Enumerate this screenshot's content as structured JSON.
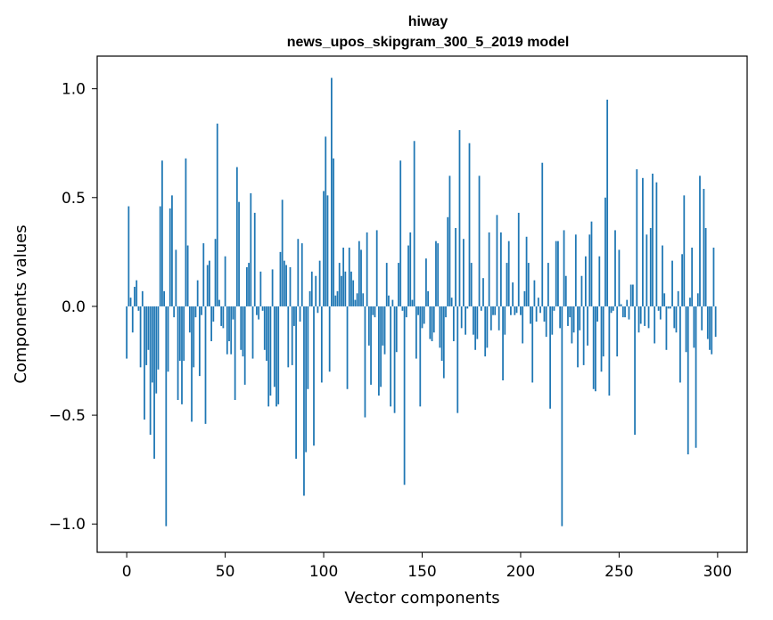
{
  "chart_data": {
    "type": "bar",
    "title_line1": "hiway",
    "title_line2": "news_upos_skipgram_300_5_2019 model",
    "xlabel": "Vector components",
    "ylabel": "Components values",
    "xlim": [
      -15,
      315
    ],
    "ylim": [
      -1.13,
      1.15
    ],
    "xticks": [
      0,
      50,
      100,
      150,
      200,
      250,
      300
    ],
    "xtick_labels": [
      "0",
      "50",
      "100",
      "150",
      "200",
      "250",
      "300"
    ],
    "yticks": [
      -1.0,
      -0.5,
      0.0,
      0.5,
      1.0
    ],
    "ytick_labels": [
      "−1.0",
      "−0.5",
      "0.0",
      "0.5",
      "1.0"
    ],
    "bar_color": "#1f77b4",
    "values": [
      -0.24,
      0.46,
      0.04,
      -0.12,
      0.09,
      0.12,
      -0.02,
      -0.28,
      0.07,
      -0.52,
      -0.27,
      -0.2,
      -0.59,
      -0.35,
      -0.7,
      -0.4,
      -0.29,
      0.46,
      0.67,
      0.07,
      -1.01,
      -0.3,
      0.45,
      0.51,
      -0.05,
      0.26,
      -0.43,
      -0.25,
      -0.45,
      -0.25,
      0.68,
      0.28,
      -0.12,
      -0.53,
      -0.28,
      -0.05,
      0.12,
      -0.32,
      -0.04,
      0.29,
      -0.54,
      0.19,
      0.21,
      -0.16,
      -0.07,
      0.31,
      0.84,
      0.03,
      -0.09,
      -0.1,
      0.23,
      -0.22,
      -0.16,
      -0.22,
      -0.06,
      -0.43,
      0.64,
      0.48,
      -0.2,
      -0.23,
      -0.36,
      0.18,
      0.2,
      0.52,
      -0.24,
      0.43,
      -0.04,
      -0.06,
      0.16,
      -0.02,
      -0.2,
      -0.25,
      -0.46,
      -0.41,
      0.17,
      -0.37,
      -0.46,
      -0.45,
      0.25,
      0.49,
      0.21,
      0.19,
      -0.28,
      0.18,
      -0.27,
      -0.09,
      -0.7,
      0.31,
      -0.07,
      0.29,
      -0.87,
      -0.67,
      -0.38,
      0.07,
      0.16,
      -0.64,
      0.14,
      -0.03,
      0.21,
      -0.35,
      0.53,
      0.78,
      0.51,
      -0.3,
      1.05,
      0.68,
      0.05,
      0.07,
      0.2,
      0.14,
      0.27,
      0.16,
      -0.38,
      0.27,
      0.16,
      0.12,
      0.03,
      0.06,
      0.3,
      0.26,
      0.06,
      -0.51,
      0.34,
      -0.18,
      -0.36,
      -0.04,
      -0.05,
      0.35,
      -0.41,
      -0.37,
      -0.18,
      -0.22,
      0.2,
      0.05,
      -0.46,
      0.03,
      -0.49,
      -0.21,
      0.2,
      0.67,
      -0.02,
      -0.82,
      -0.05,
      0.28,
      0.34,
      0.03,
      0.76,
      -0.24,
      -0.04,
      -0.46,
      -0.1,
      -0.08,
      0.22,
      0.07,
      -0.15,
      -0.16,
      -0.12,
      0.3,
      0.29,
      -0.19,
      -0.25,
      -0.33,
      -0.05,
      0.41,
      0.6,
      0.04,
      -0.16,
      0.36,
      -0.49,
      0.81,
      -0.1,
      0.31,
      -0.13,
      -0.01,
      0.75,
      0.2,
      -0.13,
      -0.2,
      -0.15,
      0.6,
      -0.02,
      0.13,
      -0.23,
      -0.19,
      0.34,
      -0.11,
      -0.04,
      -0.04,
      0.42,
      -0.11,
      0.34,
      -0.34,
      -0.13,
      0.2,
      0.3,
      -0.04,
      0.11,
      -0.04,
      -0.03,
      0.43,
      -0.04,
      -0.17,
      0.07,
      0.32,
      0.2,
      -0.08,
      -0.35,
      0.12,
      -0.07,
      0.04,
      -0.03,
      0.66,
      -0.07,
      -0.14,
      0.2,
      -0.47,
      -0.13,
      -0.02,
      0.3,
      0.3,
      -0.1,
      -1.01,
      0.35,
      0.14,
      -0.09,
      -0.05,
      -0.17,
      -0.12,
      0.33,
      -0.28,
      -0.11,
      0.14,
      -0.27,
      0.23,
      -0.18,
      0.33,
      0.39,
      -0.38,
      -0.39,
      -0.07,
      0.23,
      -0.3,
      -0.23,
      0.5,
      0.95,
      -0.41,
      -0.03,
      -0.02,
      0.35,
      -0.23,
      0.26,
      0.01,
      -0.05,
      -0.05,
      0.03,
      -0.06,
      0.1,
      0.1,
      -0.59,
      0.63,
      -0.12,
      -0.08,
      0.59,
      -0.09,
      0.33,
      -0.1,
      0.36,
      0.61,
      -0.17,
      0.57,
      -0.02,
      -0.06,
      0.28,
      0.06,
      -0.2,
      -0.01,
      -0.01,
      0.21,
      -0.1,
      -0.12,
      0.07,
      -0.35,
      0.24,
      0.51,
      -0.21,
      -0.68,
      0.04,
      0.27,
      -0.19,
      -0.65,
      0.06,
      0.6,
      -0.11,
      0.54,
      0.36,
      -0.15,
      -0.2,
      -0.22,
      0.27,
      -0.14
    ]
  }
}
